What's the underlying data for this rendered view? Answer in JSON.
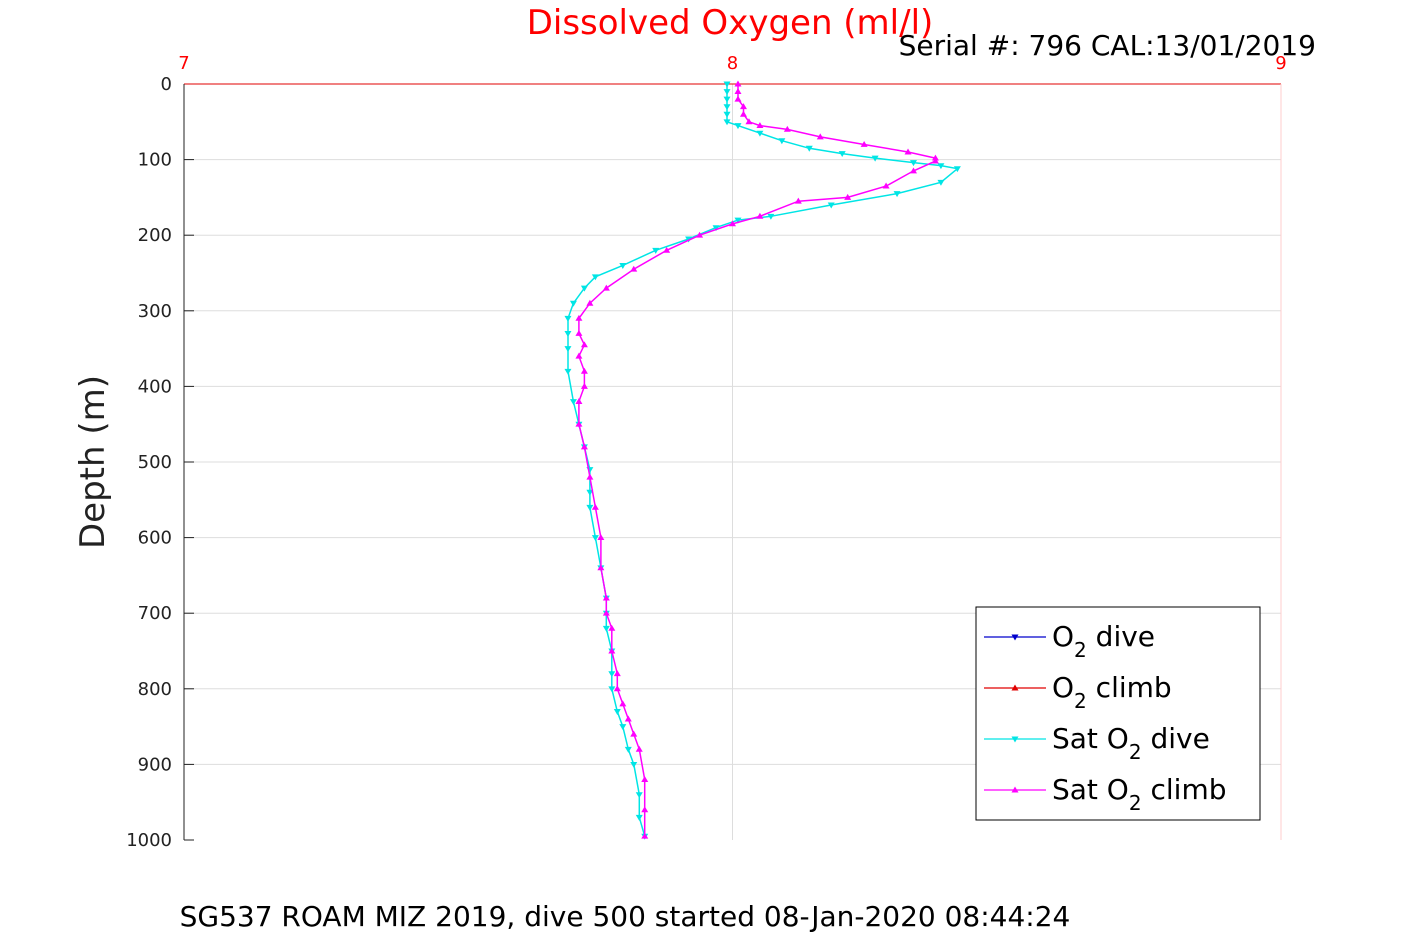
{
  "chart_data": {
    "type": "line",
    "title": "Dissolved Oxygen (ml/l)",
    "subtitle": "Serial #: 796  CAL:13/01/2019",
    "ylabel": "Depth (m)",
    "caption": "SG537 ROAM MIZ 2019, dive 500 started 08-Jan-2020 08:44:24",
    "xlim": [
      7,
      9
    ],
    "ylim": [
      0,
      1000
    ],
    "y_reversed": true,
    "x_axis_position": "top",
    "grid": true,
    "xticks": [
      "7",
      "8",
      "9"
    ],
    "yticks": [
      "0",
      "100",
      "200",
      "300",
      "400",
      "500",
      "600",
      "700",
      "800",
      "900",
      "1000"
    ],
    "legend_position": "bottom-right",
    "series": [
      {
        "name": "O2 dive",
        "legend": {
          "base": "O",
          "sub": "2",
          "rest": " dive"
        },
        "color": "#0000cc",
        "marker": "triangle-down",
        "x": [],
        "y": []
      },
      {
        "name": "O2 climb",
        "legend": {
          "base": "O",
          "sub": "2",
          "rest": " climb"
        },
        "color": "#e00000",
        "marker": "triangle-up",
        "x": [],
        "y": []
      },
      {
        "name": "Sat O2 dive",
        "legend": {
          "base": "Sat O",
          "sub": "2",
          "rest": " dive"
        },
        "color": "#00e5e5",
        "marker": "triangle-down",
        "x": [
          7.99,
          7.99,
          7.99,
          7.99,
          7.99,
          7.99,
          8.01,
          8.05,
          8.09,
          8.14,
          8.2,
          8.26,
          8.33,
          8.38,
          8.41,
          8.38,
          8.3,
          8.18,
          8.07,
          8.01,
          7.97,
          7.92,
          7.86,
          7.8,
          7.75,
          7.73,
          7.71,
          7.7,
          7.7,
          7.7,
          7.7,
          7.71,
          7.72,
          7.73,
          7.74,
          7.74,
          7.74,
          7.75,
          7.76,
          7.77,
          7.77,
          7.77,
          7.78,
          7.78,
          7.78,
          7.79,
          7.8,
          7.81,
          7.82,
          7.83,
          7.83,
          7.84
        ],
        "y": [
          0,
          10,
          20,
          30,
          40,
          50,
          55,
          65,
          75,
          85,
          92,
          98,
          104,
          108,
          112,
          130,
          145,
          160,
          175,
          180,
          190,
          205,
          220,
          240,
          255,
          270,
          290,
          310,
          330,
          350,
          380,
          420,
          450,
          480,
          510,
          540,
          560,
          600,
          640,
          680,
          700,
          720,
          750,
          780,
          800,
          830,
          850,
          880,
          900,
          940,
          970,
          995
        ]
      },
      {
        "name": "Sat O2 climb",
        "legend": {
          "base": "Sat O",
          "sub": "2",
          "rest": " climb"
        },
        "color": "#ff00ff",
        "marker": "triangle-up",
        "x": [
          8.01,
          8.01,
          8.01,
          8.02,
          8.02,
          8.03,
          8.05,
          8.1,
          8.16,
          8.24,
          8.32,
          8.37,
          8.37,
          8.33,
          8.28,
          8.21,
          8.12,
          8.05,
          8.0,
          7.94,
          7.88,
          7.82,
          7.77,
          7.74,
          7.72,
          7.72,
          7.73,
          7.72,
          7.73,
          7.73,
          7.72,
          7.72,
          7.73,
          7.74,
          7.75,
          7.76,
          7.76,
          7.77,
          7.77,
          7.78,
          7.78,
          7.79,
          7.79,
          7.8,
          7.81,
          7.82,
          7.83,
          7.84,
          7.84,
          7.84
        ],
        "y": [
          0,
          10,
          20,
          30,
          40,
          50,
          55,
          60,
          70,
          80,
          90,
          98,
          102,
          115,
          135,
          150,
          155,
          175,
          185,
          200,
          220,
          245,
          270,
          290,
          310,
          330,
          345,
          360,
          380,
          400,
          420,
          450,
          480,
          520,
          560,
          600,
          640,
          680,
          700,
          720,
          750,
          780,
          800,
          820,
          840,
          860,
          880,
          920,
          960,
          995
        ]
      }
    ]
  }
}
